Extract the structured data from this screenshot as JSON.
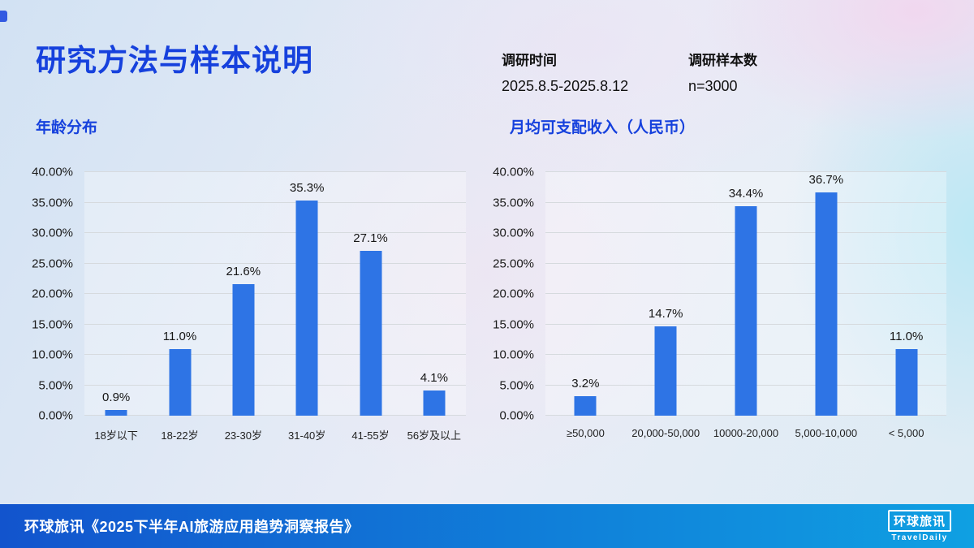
{
  "slide": {
    "title": "研究方法与样本说明",
    "meta": [
      {
        "label": "调研时间",
        "value": "2025.8.5-2025.8.12"
      },
      {
        "label": "调研样本数",
        "value": "n=3000"
      }
    ],
    "footer": {
      "source": "环球旅讯《2025下半年AI旅游应用趋势洞察报告》",
      "logo_cn": "环球旅讯",
      "logo_en": "TravelDaily"
    },
    "colors": {
      "accent": "#1641dd",
      "bar": "#2e74e5",
      "footer_left": "#1254cd",
      "footer_right": "#0fa0e2"
    }
  },
  "chart_data": [
    {
      "type": "bar",
      "title": "年龄分布",
      "categories": [
        "18岁以下",
        "18-22岁",
        "23-30岁",
        "31-40岁",
        "41-55岁",
        "56岁及以上"
      ],
      "values": [
        0.9,
        11.0,
        21.6,
        35.3,
        27.1,
        4.1
      ],
      "value_labels": [
        "0.9%",
        "11.0%",
        "21.6%",
        "35.3%",
        "27.1%",
        "4.1%"
      ],
      "xlabel": "",
      "ylabel": "",
      "ylim": [
        0,
        40
      ],
      "ytick_step": 5,
      "ytick_suffix": "%",
      "grid": true,
      "legend_position": "none"
    },
    {
      "type": "bar",
      "title": "月均可支配收入（人民币）",
      "categories": [
        "≥50,000",
        "20,000-50,000",
        "10000-20,000",
        "5,000-10,000",
        "< 5,000"
      ],
      "values": [
        3.2,
        14.7,
        34.4,
        36.7,
        11.0
      ],
      "value_labels": [
        "3.2%",
        "14.7%",
        "34.4%",
        "36.7%",
        "11.0%"
      ],
      "xlabel": "",
      "ylabel": "",
      "ylim": [
        0,
        40
      ],
      "ytick_step": 5,
      "ytick_suffix": "%",
      "grid": true,
      "legend_position": "none"
    }
  ]
}
